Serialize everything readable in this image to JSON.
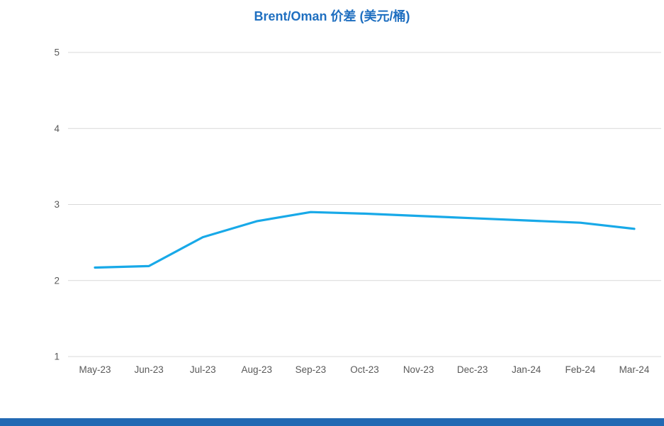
{
  "title": "Brent/Oman 价差 (美元/桶)",
  "colors": {
    "title": "#1F6FC0",
    "line": "#18A9E8",
    "gridline": "#D9D9D9",
    "tick_label": "#595959",
    "footer_bar": "#2269B3",
    "background": "#FFFFFF"
  },
  "chart_data": {
    "type": "line",
    "title": "Brent/Oman 价差 (美元/桶)",
    "categories": [
      "May-23",
      "Jun-23",
      "Jul-23",
      "Aug-23",
      "Sep-23",
      "Oct-23",
      "Nov-23",
      "Dec-23",
      "Jan-24",
      "Feb-24",
      "Mar-24"
    ],
    "series": [
      {
        "name": "Brent/Oman 价差",
        "values": [
          2.17,
          2.19,
          2.57,
          2.78,
          2.9,
          2.88,
          2.85,
          2.82,
          2.79,
          2.76,
          2.68
        ]
      }
    ],
    "xlabel": "",
    "ylabel": "",
    "ylim": [
      1,
      5
    ],
    "yticks": [
      1,
      2,
      3,
      4,
      5
    ],
    "grid": "horizontal",
    "legend": "none"
  }
}
